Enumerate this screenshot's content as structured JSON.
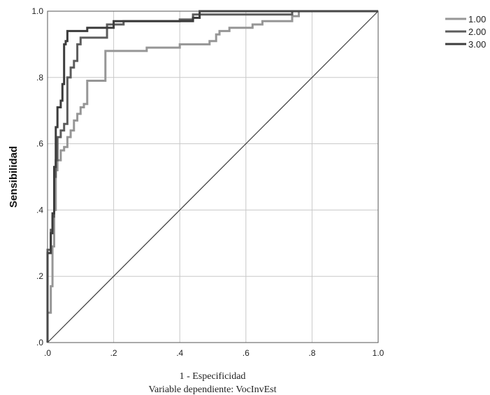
{
  "chart_data": {
    "type": "line",
    "title": "",
    "xlabel": "1 - Especificidad",
    "xlabel2": "Variable dependiente: VocInvEst",
    "ylabel": "Sensibilidad",
    "xlim": [
      0,
      1
    ],
    "ylim": [
      0,
      1
    ],
    "x_ticks": [
      0,
      0.2,
      0.4,
      0.6,
      0.8,
      1.0
    ],
    "x_tick_labels": [
      ".0",
      ".2",
      ".4",
      ".6",
      ".8",
      "1.0"
    ],
    "y_ticks": [
      0,
      0.2,
      0.4,
      0.6,
      0.8,
      1.0
    ],
    "y_tick_labels": [
      ".0",
      ".2",
      ".4",
      ".6",
      ".8",
      "1.0"
    ],
    "grid": true,
    "legend_position": "top-right",
    "series": [
      {
        "name": "1.00",
        "color": "#969696",
        "points": [
          [
            0,
            0
          ],
          [
            0,
            0.09
          ],
          [
            0.01,
            0.09
          ],
          [
            0.01,
            0.17
          ],
          [
            0.015,
            0.17
          ],
          [
            0.015,
            0.29
          ],
          [
            0.02,
            0.29
          ],
          [
            0.02,
            0.4
          ],
          [
            0.025,
            0.4
          ],
          [
            0.025,
            0.52
          ],
          [
            0.03,
            0.52
          ],
          [
            0.03,
            0.55
          ],
          [
            0.04,
            0.55
          ],
          [
            0.04,
            0.58
          ],
          [
            0.05,
            0.58
          ],
          [
            0.05,
            0.59
          ],
          [
            0.06,
            0.59
          ],
          [
            0.06,
            0.62
          ],
          [
            0.07,
            0.62
          ],
          [
            0.07,
            0.64
          ],
          [
            0.08,
            0.64
          ],
          [
            0.08,
            0.67
          ],
          [
            0.09,
            0.67
          ],
          [
            0.09,
            0.69
          ],
          [
            0.1,
            0.69
          ],
          [
            0.1,
            0.71
          ],
          [
            0.11,
            0.71
          ],
          [
            0.11,
            0.72
          ],
          [
            0.12,
            0.72
          ],
          [
            0.12,
            0.79
          ],
          [
            0.175,
            0.79
          ],
          [
            0.175,
            0.88
          ],
          [
            0.3,
            0.88
          ],
          [
            0.3,
            0.89
          ],
          [
            0.4,
            0.89
          ],
          [
            0.4,
            0.9
          ],
          [
            0.49,
            0.9
          ],
          [
            0.49,
            0.91
          ],
          [
            0.51,
            0.91
          ],
          [
            0.51,
            0.93
          ],
          [
            0.52,
            0.93
          ],
          [
            0.52,
            0.94
          ],
          [
            0.55,
            0.94
          ],
          [
            0.55,
            0.95
          ],
          [
            0.62,
            0.95
          ],
          [
            0.62,
            0.96
          ],
          [
            0.65,
            0.96
          ],
          [
            0.65,
            0.97
          ],
          [
            0.74,
            0.97
          ],
          [
            0.74,
            0.985
          ],
          [
            0.76,
            0.985
          ],
          [
            0.76,
            1.0
          ],
          [
            1.0,
            1.0
          ]
        ]
      },
      {
        "name": "2.00",
        "color": "#5c5c5c",
        "points": [
          [
            0,
            0
          ],
          [
            0,
            0.28
          ],
          [
            0.01,
            0.28
          ],
          [
            0.01,
            0.34
          ],
          [
            0.015,
            0.34
          ],
          [
            0.015,
            0.38
          ],
          [
            0.02,
            0.38
          ],
          [
            0.02,
            0.5
          ],
          [
            0.025,
            0.5
          ],
          [
            0.025,
            0.55
          ],
          [
            0.03,
            0.55
          ],
          [
            0.03,
            0.62
          ],
          [
            0.04,
            0.62
          ],
          [
            0.04,
            0.64
          ],
          [
            0.05,
            0.64
          ],
          [
            0.05,
            0.66
          ],
          [
            0.06,
            0.66
          ],
          [
            0.06,
            0.8
          ],
          [
            0.07,
            0.8
          ],
          [
            0.07,
            0.83
          ],
          [
            0.08,
            0.83
          ],
          [
            0.08,
            0.85
          ],
          [
            0.09,
            0.85
          ],
          [
            0.09,
            0.9
          ],
          [
            0.1,
            0.9
          ],
          [
            0.1,
            0.92
          ],
          [
            0.18,
            0.92
          ],
          [
            0.18,
            0.96
          ],
          [
            0.23,
            0.96
          ],
          [
            0.23,
            0.97
          ],
          [
            0.4,
            0.97
          ],
          [
            0.4,
            0.975
          ],
          [
            0.44,
            0.975
          ],
          [
            0.44,
            0.99
          ],
          [
            0.74,
            0.99
          ],
          [
            0.74,
            1.0
          ],
          [
            1.0,
            1.0
          ]
        ]
      },
      {
        "name": "3.00",
        "color": "#3c3c3c",
        "points": [
          [
            0,
            0
          ],
          [
            0,
            0.27
          ],
          [
            0.01,
            0.27
          ],
          [
            0.01,
            0.33
          ],
          [
            0.015,
            0.33
          ],
          [
            0.015,
            0.39
          ],
          [
            0.02,
            0.39
          ],
          [
            0.02,
            0.53
          ],
          [
            0.025,
            0.53
          ],
          [
            0.025,
            0.65
          ],
          [
            0.03,
            0.65
          ],
          [
            0.03,
            0.71
          ],
          [
            0.04,
            0.71
          ],
          [
            0.04,
            0.73
          ],
          [
            0.045,
            0.73
          ],
          [
            0.045,
            0.78
          ],
          [
            0.05,
            0.78
          ],
          [
            0.05,
            0.9
          ],
          [
            0.055,
            0.9
          ],
          [
            0.055,
            0.91
          ],
          [
            0.06,
            0.91
          ],
          [
            0.06,
            0.94
          ],
          [
            0.12,
            0.94
          ],
          [
            0.12,
            0.95
          ],
          [
            0.2,
            0.95
          ],
          [
            0.2,
            0.97
          ],
          [
            0.44,
            0.97
          ],
          [
            0.44,
            0.98
          ],
          [
            0.46,
            0.98
          ],
          [
            0.46,
            1.0
          ],
          [
            1.0,
            1.0
          ]
        ]
      }
    ],
    "reference_line": {
      "color": "#3a3a3a",
      "points": [
        [
          0,
          0
        ],
        [
          1,
          1
        ]
      ]
    }
  }
}
